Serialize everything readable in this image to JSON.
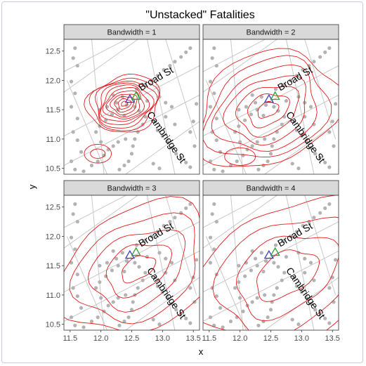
{
  "chart_data": {
    "type": "contour",
    "title": "\"Unstacked\" Fatalities",
    "xlabel": "x",
    "ylabel": "y",
    "xlim": [
      11.4,
      13.6
    ],
    "ylim": [
      10.4,
      12.7
    ],
    "x_ticks": [
      "11.5",
      "12.0",
      "12.5",
      "13.0",
      "13.5"
    ],
    "y_ticks": [
      "10.5",
      "11.0",
      "11.5",
      "12.0",
      "12.5"
    ],
    "x_tick_values": [
      11.5,
      12.0,
      12.5,
      13.0,
      13.5
    ],
    "y_tick_values": [
      10.5,
      11.0,
      11.5,
      12.0,
      12.5
    ],
    "panels": [
      {
        "label": "Bandwidth = 1",
        "bandwidth": 1
      },
      {
        "label": "Bandwidth = 2",
        "bandwidth": 2
      },
      {
        "label": "Bandwidth = 3",
        "bandwidth": 3
      },
      {
        "label": "Bandwidth = 4",
        "bandwidth": 4
      }
    ],
    "street_labels": [
      "Broad St",
      "Cambridge St"
    ],
    "pump_markers": [
      {
        "x": 12.47,
        "y": 11.68,
        "color": "#3a3acc"
      },
      {
        "x": 12.57,
        "y": 11.73,
        "color": "#2ca02c"
      }
    ],
    "contour_color": "#e41a1c",
    "street_color": "#c8c8c8",
    "fatality_color": "#b3b3b3",
    "fatalities": [
      [
        11.58,
        12.55
      ],
      [
        11.55,
        12.38
      ],
      [
        11.62,
        12.25
      ],
      [
        11.52,
        11.98
      ],
      [
        11.58,
        11.78
      ],
      [
        11.52,
        11.55
      ],
      [
        11.62,
        11.35
      ],
      [
        11.55,
        11.12
      ],
      [
        11.62,
        10.98
      ],
      [
        11.68,
        10.78
      ],
      [
        11.52,
        10.62
      ],
      [
        11.58,
        10.48
      ],
      [
        11.72,
        10.45
      ],
      [
        11.85,
        10.55
      ],
      [
        11.95,
        10.62
      ],
      [
        12.05,
        10.72
      ],
      [
        12.12,
        10.82
      ],
      [
        12.2,
        10.88
      ],
      [
        12.28,
        10.95
      ],
      [
        12.4,
        11.0
      ],
      [
        11.92,
        11.12
      ],
      [
        11.98,
        11.22
      ],
      [
        12.08,
        11.32
      ],
      [
        12.18,
        11.42
      ],
      [
        12.28,
        11.5
      ],
      [
        11.98,
        11.5
      ],
      [
        12.1,
        11.55
      ],
      [
        12.25,
        11.62
      ],
      [
        12.42,
        11.58
      ],
      [
        12.55,
        11.55
      ],
      [
        12.62,
        11.48
      ],
      [
        12.72,
        11.38
      ],
      [
        12.68,
        11.25
      ],
      [
        12.6,
        11.12
      ],
      [
        12.55,
        11.0
      ],
      [
        12.52,
        10.88
      ],
      [
        12.5,
        10.75
      ],
      [
        12.45,
        10.62
      ],
      [
        12.38,
        10.55
      ],
      [
        12.3,
        10.48
      ],
      [
        12.58,
        11.85
      ],
      [
        12.7,
        11.92
      ],
      [
        12.82,
        12.0
      ],
      [
        12.92,
        12.08
      ],
      [
        13.02,
        12.18
      ],
      [
        13.12,
        12.25
      ],
      [
        13.2,
        12.32
      ],
      [
        13.3,
        12.4
      ],
      [
        13.38,
        12.48
      ],
      [
        13.45,
        12.55
      ],
      [
        12.95,
        11.72
      ],
      [
        13.05,
        11.62
      ],
      [
        13.15,
        11.55
      ],
      [
        12.88,
        11.3
      ],
      [
        12.92,
        11.15
      ],
      [
        13.0,
        11.05
      ],
      [
        13.08,
        10.95
      ],
      [
        13.15,
        10.85
      ],
      [
        13.22,
        10.75
      ],
      [
        13.3,
        10.68
      ],
      [
        13.38,
        10.6
      ],
      [
        13.45,
        10.52
      ],
      [
        13.52,
        10.88
      ],
      [
        13.45,
        11.12
      ],
      [
        13.5,
        11.3
      ],
      [
        13.05,
        11.38
      ],
      [
        12.75,
        11.65
      ],
      [
        12.35,
        11.72
      ],
      [
        12.2,
        11.75
      ],
      [
        12.38,
        11.4
      ],
      [
        12.85,
        10.58
      ],
      [
        12.95,
        10.5
      ],
      [
        13.2,
        11.25
      ],
      [
        13.55,
        11.6
      ],
      [
        12.0,
        10.95
      ]
    ]
  }
}
